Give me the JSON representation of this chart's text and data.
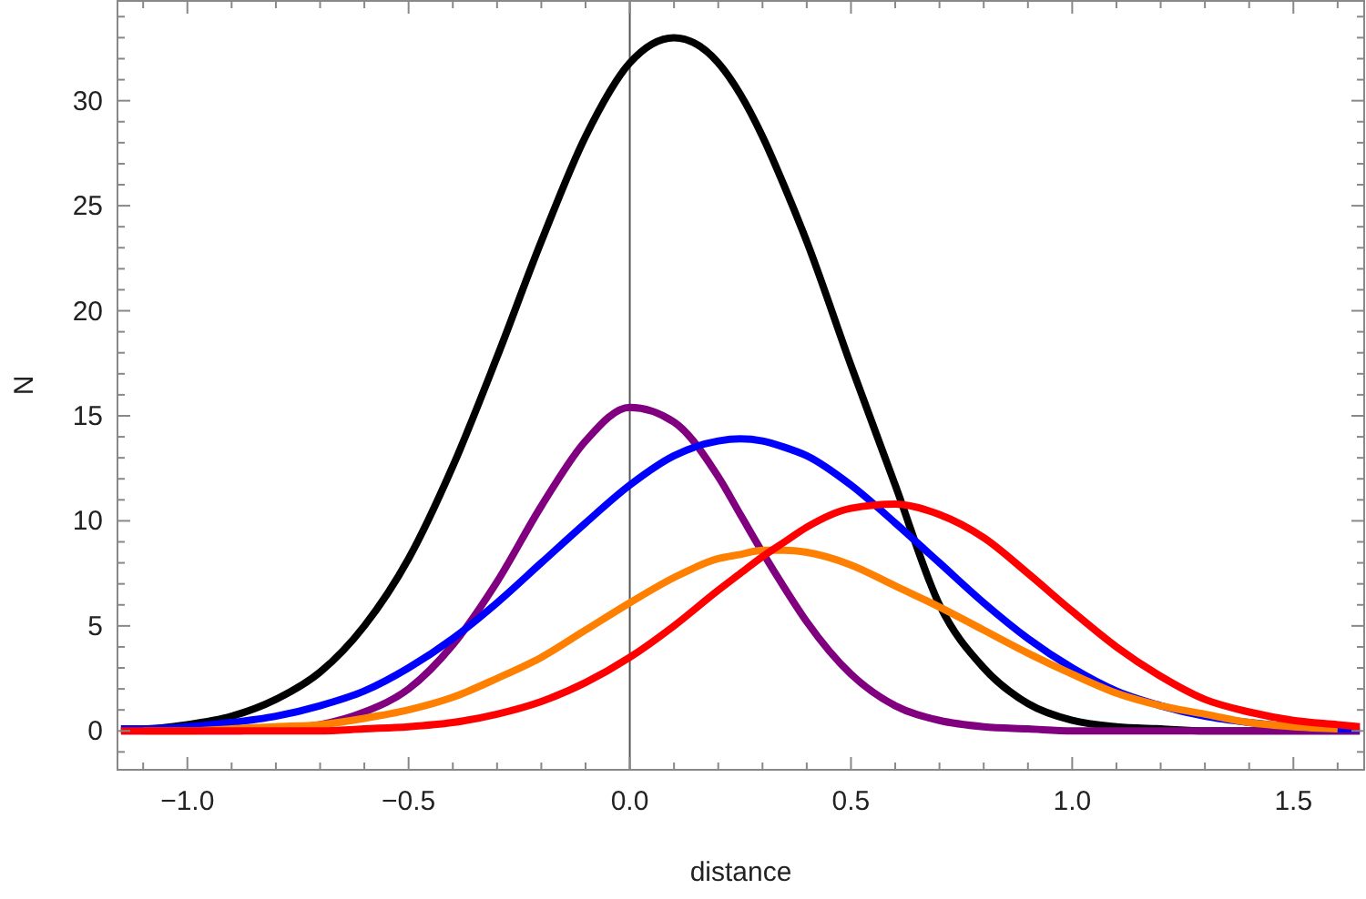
{
  "chart_data": {
    "type": "line",
    "xlabel": "distance",
    "ylabel": "N",
    "x": [
      -1.15,
      -1.1,
      -1.0,
      -0.9,
      -0.8,
      -0.7,
      -0.6,
      -0.5,
      -0.4,
      -0.3,
      -0.2,
      -0.1,
      0,
      0.1,
      0.2,
      0.25,
      0.3,
      0.35,
      0.4,
      0.5,
      0.6,
      0.7,
      0.8,
      0.9,
      1.0,
      1.1,
      1.2,
      1.3,
      1.4,
      1.5,
      1.6,
      1.65
    ],
    "series": [
      {
        "color": "#000000",
        "values": [
          0.1,
          0.1,
          0.3,
          0.7,
          1.5,
          2.8,
          5.0,
          8.2,
          12.6,
          17.8,
          23.3,
          28.3,
          31.8,
          33,
          31.8,
          30.3,
          28.3,
          25.9,
          23.3,
          17.4,
          11.7,
          6.0,
          3.0,
          1.3,
          0.5,
          0.2,
          0.1,
          0,
          0,
          0,
          0,
          0
        ]
      },
      {
        "color": "#800080",
        "values": [
          0,
          0,
          0,
          0,
          0.1,
          0.3,
          0.9,
          2.0,
          4.1,
          7.1,
          10.7,
          13.8,
          15.4,
          14.7,
          12.1,
          10.3,
          8.5,
          6.8,
          5.2,
          2.7,
          1.2,
          0.5,
          0.2,
          0.1,
          0,
          0,
          0,
          0,
          0,
          0,
          0,
          0
        ]
      },
      {
        "color": "#0000ff",
        "values": [
          0.1,
          0.1,
          0.2,
          0.4,
          0.7,
          1.2,
          1.9,
          3.0,
          4.4,
          6.1,
          8.0,
          9.9,
          11.7,
          13.1,
          13.8,
          13.9,
          13.8,
          13.5,
          13.1,
          11.7,
          9.9,
          8.0,
          6.1,
          4.4,
          3.0,
          1.9,
          1.2,
          0.7,
          0.4,
          0.2,
          0.1,
          0.1
        ]
      },
      {
        "color": "#ff8000",
        "values": [
          null,
          0,
          0,
          0.1,
          0.2,
          0.3,
          0.6,
          1.0,
          1.6,
          2.5,
          3.5,
          4.8,
          6.1,
          7.3,
          8.2,
          8.4,
          8.6,
          8.6,
          8.5,
          7.9,
          6.9,
          5.9,
          4.8,
          3.7,
          2.7,
          1.8,
          1.2,
          0.8,
          0.4,
          0.2,
          0.1,
          null
        ]
      },
      {
        "color": "#ff0000",
        "values": [
          0,
          0,
          0,
          0,
          0,
          0,
          0.1,
          0.2,
          0.4,
          0.8,
          1.4,
          2.3,
          3.5,
          5.0,
          6.7,
          7.5,
          8.3,
          9.0,
          9.7,
          10.6,
          10.8,
          10.3,
          9.2,
          7.5,
          5.7,
          4.0,
          2.6,
          1.5,
          0.9,
          0.5,
          0.3,
          0.2
        ]
      }
    ],
    "xlim": [
      -1.158,
      1.66
    ],
    "ylim": [
      -1.85,
      34.75
    ],
    "xticks": [
      {
        "value": -1.1,
        "label": null
      },
      {
        "value": -1.0,
        "label": "−1.0"
      },
      {
        "value": -0.9,
        "label": null
      },
      {
        "value": -0.8,
        "label": null
      },
      {
        "value": -0.7,
        "label": null
      },
      {
        "value": -0.6,
        "label": null
      },
      {
        "value": -0.5,
        "label": "−0.5"
      },
      {
        "value": -0.4,
        "label": null
      },
      {
        "value": -0.3,
        "label": null
      },
      {
        "value": -0.2,
        "label": null
      },
      {
        "value": -0.1,
        "label": null
      },
      {
        "value": 0,
        "label": "0.0"
      },
      {
        "value": 0.1,
        "label": null
      },
      {
        "value": 0.2,
        "label": null
      },
      {
        "value": 0.3,
        "label": null
      },
      {
        "value": 0.4,
        "label": null
      },
      {
        "value": 0.5,
        "label": "0.5"
      },
      {
        "value": 0.6,
        "label": null
      },
      {
        "value": 0.7,
        "label": null
      },
      {
        "value": 0.8,
        "label": null
      },
      {
        "value": 0.9,
        "label": null
      },
      {
        "value": 1.0,
        "label": "1.0"
      },
      {
        "value": 1.1,
        "label": null
      },
      {
        "value": 1.2,
        "label": null
      },
      {
        "value": 1.3,
        "label": null
      },
      {
        "value": 1.4,
        "label": null
      },
      {
        "value": 1.5,
        "label": "1.5"
      },
      {
        "value": 1.6,
        "label": null
      }
    ],
    "yticks": [
      {
        "value": -1,
        "label": null
      },
      0,
      {
        "value": 1,
        "label": null
      },
      {
        "value": 2,
        "label": null
      },
      {
        "value": 3,
        "label": null
      },
      {
        "value": 4,
        "label": null
      },
      5,
      {
        "value": 6,
        "label": null
      },
      {
        "value": 7,
        "label": null
      },
      {
        "value": 8,
        "label": null
      },
      {
        "value": 9,
        "label": null
      },
      10,
      {
        "value": 11,
        "label": null
      },
      {
        "value": 12,
        "label": null
      },
      {
        "value": 13,
        "label": null
      },
      {
        "value": 14,
        "label": null
      },
      15,
      {
        "value": 16,
        "label": null
      },
      {
        "value": 17,
        "label": null
      },
      {
        "value": 18,
        "label": null
      },
      {
        "value": 19,
        "label": null
      },
      20,
      {
        "value": 21,
        "label": null
      },
      {
        "value": 22,
        "label": null
      },
      {
        "value": 23,
        "label": null
      },
      {
        "value": 24,
        "label": null
      },
      25,
      {
        "value": 26,
        "label": null
      },
      {
        "value": 27,
        "label": null
      },
      {
        "value": 28,
        "label": null
      },
      {
        "value": 29,
        "label": null
      },
      30,
      {
        "value": 31,
        "label": null
      },
      {
        "value": 32,
        "label": null
      },
      {
        "value": 33,
        "label": null
      },
      {
        "value": 34,
        "label": null
      }
    ],
    "ref_lines": [
      {
        "axis": "x",
        "value": 0,
        "color": "#555555"
      }
    ],
    "grid": false,
    "marker": "none",
    "line_style": "solid"
  }
}
